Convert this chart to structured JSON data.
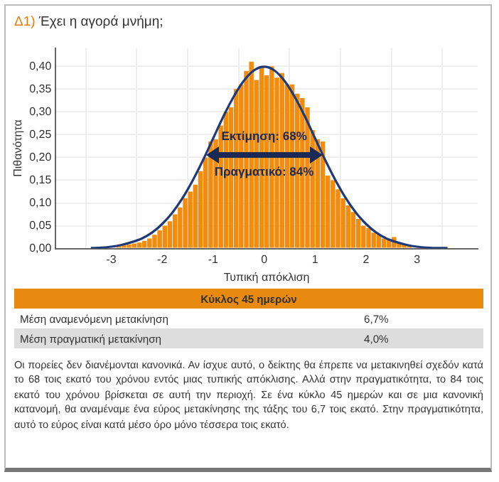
{
  "chart_data": {
    "type": "histogram",
    "title": "Δ1) Έχει η αγορά μνήμη;",
    "xlabel": "Τυπική απόκλιση",
    "ylabel": "Πιθανότητα",
    "xlim": [
      -3.5,
      3.6
    ],
    "xticks": [
      -3,
      -2,
      -1,
      0,
      1,
      2,
      3
    ],
    "ylim": [
      0,
      0.44
    ],
    "yticks": [
      {
        "value": 0,
        "label": "0,00"
      },
      {
        "value": 0.05,
        "label": "0,05"
      },
      {
        "value": 0.1,
        "label": "0,10"
      },
      {
        "value": 0.15,
        "label": "0,15"
      },
      {
        "value": 0.2,
        "label": "0,20"
      },
      {
        "value": 0.25,
        "label": "0,25"
      },
      {
        "value": 0.3,
        "label": "0,30"
      },
      {
        "value": 0.35,
        "label": "0,35"
      },
      {
        "value": 0.4,
        "label": "0,40"
      }
    ],
    "grid": true,
    "series": [
      {
        "type": "histogram",
        "color": "#f28c0f",
        "bins": [
          -3.0,
          -2.9,
          -2.8,
          -2.7,
          -2.6,
          -2.5,
          -2.4,
          -2.3,
          -2.2,
          -2.1,
          -2.0,
          -1.9,
          -1.8,
          -1.7,
          -1.6,
          -1.5,
          -1.4,
          -1.3,
          -1.2,
          -1.1,
          -1.0,
          -0.9,
          -0.8,
          -0.7,
          -0.6,
          -0.5,
          -0.4,
          -0.3,
          -0.2,
          -0.1,
          0.0,
          0.1,
          0.2,
          0.3,
          0.4,
          0.5,
          0.6,
          0.7,
          0.8,
          0.9,
          1.0,
          1.1,
          1.2,
          1.3,
          1.4,
          1.5,
          1.6,
          1.7,
          1.8,
          1.9,
          2.0,
          2.1,
          2.2,
          2.3,
          2.4,
          2.5,
          2.6,
          2.7,
          2.8,
          2.9,
          3.0
        ],
        "values": [
          null,
          0.007,
          0.008,
          0.009,
          0.011,
          0.013,
          0.017,
          0.022,
          0.03,
          0.04,
          0.05,
          0.06,
          0.075,
          0.09,
          0.11,
          0.125,
          0.14,
          0.17,
          0.2,
          0.235,
          0.24,
          0.27,
          0.3,
          0.31,
          0.35,
          0.36,
          0.39,
          0.41,
          0.37,
          0.4,
          0.38,
          0.4,
          0.375,
          0.385,
          0.36,
          0.36,
          0.34,
          0.33,
          0.31,
          0.26,
          0.24,
          0.235,
          0.16,
          0.15,
          0.13,
          0.11,
          0.095,
          0.08,
          0.065,
          0.05,
          0.045,
          0.035,
          0.03,
          0.022,
          0.02,
          0.025,
          0.012,
          0.009,
          0.007,
          null
        ]
      },
      {
        "type": "line",
        "color": "#1f3a78",
        "x": [
          -3.4,
          -3.2,
          -3.0,
          -2.8,
          -2.6,
          -2.4,
          -2.2,
          -2.0,
          -1.8,
          -1.6,
          -1.4,
          -1.2,
          -1.0,
          -0.8,
          -0.6,
          -0.4,
          -0.2,
          0,
          0.2,
          0.4,
          0.6,
          0.8,
          1.0,
          1.2,
          1.4,
          1.6,
          1.8,
          2.0,
          2.2,
          2.4,
          2.6,
          2.8,
          3.0,
          3.2,
          3.4,
          3.6
        ],
        "values": [
          0.001,
          0.002,
          0.004,
          0.008,
          0.014,
          0.022,
          0.035,
          0.054,
          0.079,
          0.111,
          0.15,
          0.194,
          0.242,
          0.29,
          0.333,
          0.368,
          0.391,
          0.399,
          0.391,
          0.368,
          0.333,
          0.29,
          0.242,
          0.194,
          0.15,
          0.111,
          0.079,
          0.054,
          0.035,
          0.022,
          0.014,
          0.008,
          0.004,
          0.002,
          0.001,
          0.001
        ]
      }
    ],
    "annotations": [
      {
        "text": "Εκτίμηση: 68%",
        "x": 0,
        "y": 0.245
      },
      {
        "text": "Πραγματικό: 84%",
        "x": 0,
        "y": 0.168
      },
      "Κύκλος 45 ημερών",
      "Μέση αναμενόμενη μετακίνηση",
      "6,7%",
      "Μέση πραγματική μετακίνηση",
      "4,0%",
      "Οι πορείες δεν διανέμονται κανονικά. Αν ίσχυε αυτό, ο δείκτης θα έπρεπε να μετακινηθεί σχεδόν κατά το 68 τοις εκατό του χρόνου εντός μιας τυπικής απόκλισης. Αλλά στην πραγματικότητα, το 84 τοις εκατό του χρόνου βρίσκεται σε αυτή την περιοχή. Σε ένα κύκλο 45 ημερών και σε μια κανονική κατανομή, θα αναμέναμε ένα εύρος μετακίνησης της τάξης του 6,7 τοις εκατό. Στην πραγματικότητα, αυτό το εύρος είναι κατά μέσο όρο μόνο τέσσερα τοις εκατό."
    ]
  }
}
